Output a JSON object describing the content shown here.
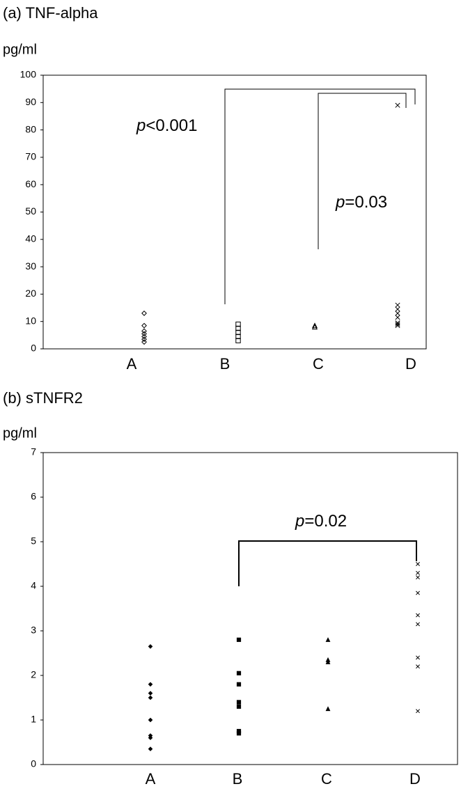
{
  "chart_data": [
    {
      "type": "scatter",
      "title": "(a) TNF-alpha",
      "y_label": "pg/ml",
      "categories": [
        "A",
        "B",
        "C",
        "D"
      ],
      "values": [
        [
          13,
          8.5,
          6.5,
          5.5,
          4.5,
          3.5,
          2.5
        ],
        [
          9,
          7.5,
          6,
          4.5,
          3
        ],
        [
          8.5,
          8
        ],
        [
          89,
          16,
          14.5,
          13,
          11.5,
          9.5,
          9,
          8.5
        ]
      ],
      "markers": [
        "diamond",
        "square",
        "triangle",
        "x"
      ],
      "filled": false,
      "color": "#000000",
      "ylim": [
        0,
        100
      ],
      "yticks": [
        0,
        10,
        20,
        30,
        40,
        50,
        60,
        70,
        80,
        90,
        100
      ],
      "annotations": [
        "p<0.001",
        "p=0.03"
      ]
    },
    {
      "type": "scatter",
      "title": "(b) sTNFR2",
      "y_label": "pg/ml",
      "categories": [
        "A",
        "B",
        "C",
        "D"
      ],
      "values": [
        [
          2.65,
          1.8,
          1.6,
          1.5,
          1.0,
          0.65,
          0.6,
          0.35
        ],
        [
          2.8,
          2.05,
          1.8,
          1.4,
          1.3,
          0.75,
          0.7
        ],
        [
          2.8,
          2.35,
          2.3,
          1.25
        ],
        [
          4.5,
          4.3,
          4.2,
          3.85,
          3.35,
          3.15,
          2.4,
          2.2,
          1.2
        ]
      ],
      "markers": [
        "diamond",
        "square",
        "triangle",
        "x"
      ],
      "filled": true,
      "color": "#000000",
      "ylim": [
        0,
        7
      ],
      "yticks": [
        0,
        1,
        2,
        3,
        4,
        5,
        6,
        7
      ],
      "annotations": [
        "p=0.02"
      ]
    }
  ]
}
